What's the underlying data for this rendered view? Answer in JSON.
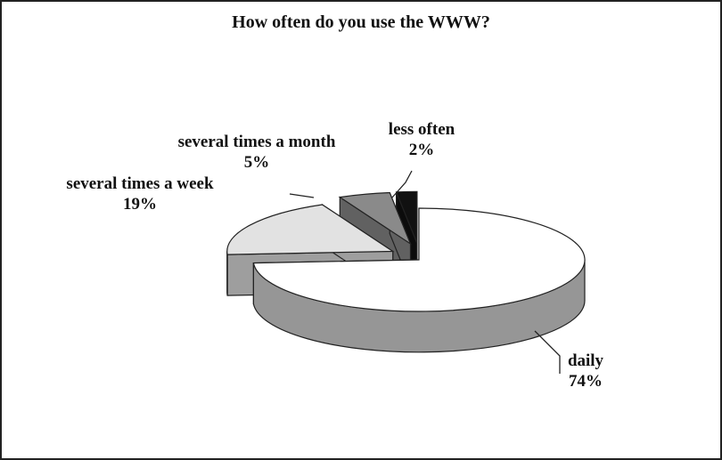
{
  "chart_data": {
    "type": "pie",
    "title": "How often do you use the WWW?",
    "categories": [
      "daily",
      "several times a week",
      "several times a month",
      "less often"
    ],
    "values": [
      74,
      19,
      5,
      2
    ],
    "value_labels": [
      "74%",
      "19%",
      "5%",
      "2%"
    ],
    "colors": [
      "#ffffff",
      "#e2e2e2",
      "#8a8a8a",
      "#111111"
    ]
  }
}
